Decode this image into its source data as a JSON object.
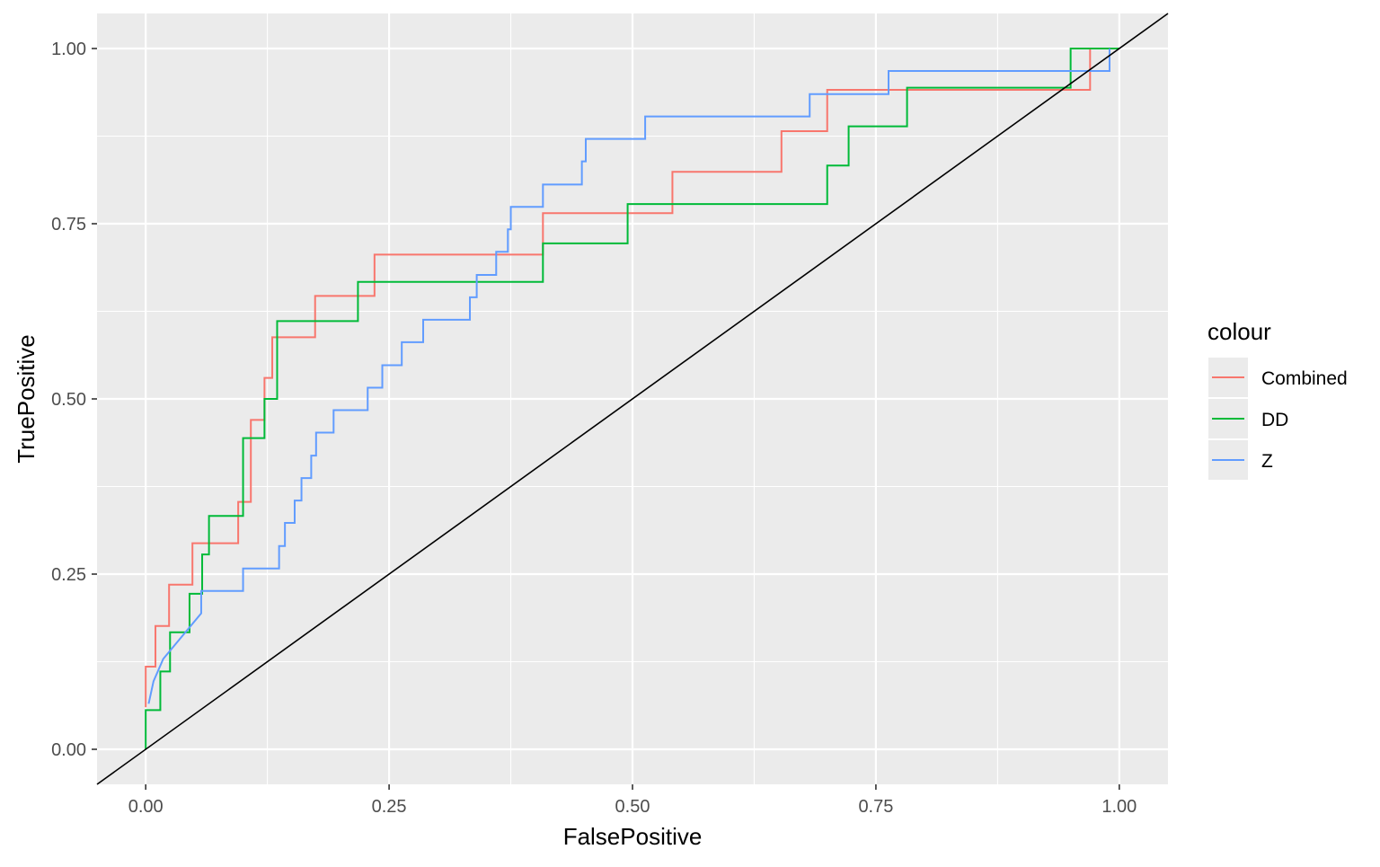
{
  "chart_data": {
    "type": "line",
    "title": "",
    "xlabel": "FalsePositive",
    "ylabel": "TruePositive",
    "xlim": [
      -0.05,
      1.05
    ],
    "ylim": [
      -0.05,
      1.05
    ],
    "x_ticks": [
      "0.00",
      "0.25",
      "0.50",
      "0.75",
      "1.00"
    ],
    "y_ticks": [
      "0.00",
      "0.25",
      "0.50",
      "0.75",
      "1.00"
    ],
    "grid": true,
    "legend": {
      "title": "colour",
      "position": "right",
      "entries": [
        "Combined",
        "DD",
        "Z"
      ]
    },
    "reference_line": {
      "x": [
        -0.05,
        1.05
      ],
      "y": [
        -0.05,
        1.05
      ],
      "color": "#000000"
    },
    "series": [
      {
        "name": "Combined",
        "color": "#F8766D",
        "x": [
          0,
          0,
          0.01,
          0.01,
          0.024,
          0.024,
          0.048,
          0.048,
          0.095,
          0.095,
          0.108,
          0.108,
          0.122,
          0.122,
          0.13,
          0.13,
          0.133,
          0.133,
          0.174,
          0.174,
          0.235,
          0.235,
          0.408,
          0.408,
          0.541,
          0.541,
          0.653,
          0.653,
          0.7,
          0.7,
          0.97,
          0.97
        ],
        "y": [
          0.06,
          0.118,
          0.118,
          0.176,
          0.176,
          0.235,
          0.235,
          0.294,
          0.294,
          0.353,
          0.353,
          0.47,
          0.47,
          0.53,
          0.53,
          0.588,
          0.588,
          0.588,
          0.588,
          0.647,
          0.647,
          0.706,
          0.706,
          0.765,
          0.765,
          0.824,
          0.824,
          0.882,
          0.882,
          0.941,
          0.941,
          1.0
        ]
      },
      {
        "name": "DD",
        "color": "#00BA38",
        "x": [
          0,
          0,
          0.015,
          0.015,
          0.02,
          0.02,
          0.025,
          0.025,
          0.045,
          0.045,
          0.058,
          0.058,
          0.065,
          0.065,
          0.1,
          0.1,
          0.122,
          0.122,
          0.135,
          0.135,
          0.218,
          0.218,
          0.408,
          0.408,
          0.495,
          0.495,
          0.7,
          0.7,
          0.722,
          0.722,
          0.782,
          0.782,
          0.95,
          0.95,
          1.0
        ],
        "y": [
          0,
          0.056,
          0.056,
          0.111,
          0.111,
          0.111,
          0.111,
          0.167,
          0.167,
          0.222,
          0.222,
          0.278,
          0.278,
          0.333,
          0.333,
          0.444,
          0.444,
          0.5,
          0.5,
          0.611,
          0.611,
          0.667,
          0.667,
          0.722,
          0.722,
          0.778,
          0.778,
          0.833,
          0.833,
          0.889,
          0.889,
          0.944,
          0.944,
          1.0,
          1.0
        ]
      },
      {
        "name": "Z",
        "color": "#619CFF",
        "x": [
          0.003,
          0.003,
          0.008,
          0.008,
          0.018,
          0.018,
          0.057,
          0.057,
          0.06,
          0.06,
          0.1,
          0.1,
          0.137,
          0.137,
          0.143,
          0.143,
          0.153,
          0.153,
          0.16,
          0.16,
          0.17,
          0.17,
          0.175,
          0.175,
          0.193,
          0.193,
          0.228,
          0.228,
          0.243,
          0.243,
          0.263,
          0.263,
          0.285,
          0.285,
          0.333,
          0.333,
          0.34,
          0.34,
          0.36,
          0.36,
          0.372,
          0.372,
          0.375,
          0.375,
          0.408,
          0.408,
          0.448,
          0.448,
          0.452,
          0.452,
          0.513,
          0.513,
          0.682,
          0.682,
          0.763,
          0.763,
          0.99,
          0.99
        ],
        "y": [
          0.065,
          0.065,
          0.097,
          0.097,
          0.129,
          0.129,
          0.194,
          0.226,
          0.226,
          0.226,
          0.226,
          0.258,
          0.258,
          0.29,
          0.29,
          0.323,
          0.323,
          0.355,
          0.355,
          0.387,
          0.387,
          0.419,
          0.419,
          0.452,
          0.452,
          0.484,
          0.484,
          0.516,
          0.516,
          0.548,
          0.548,
          0.581,
          0.581,
          0.613,
          0.613,
          0.645,
          0.645,
          0.677,
          0.677,
          0.71,
          0.71,
          0.742,
          0.742,
          0.774,
          0.774,
          0.806,
          0.806,
          0.839,
          0.839,
          0.871,
          0.871,
          0.903,
          0.903,
          0.935,
          0.935,
          0.968,
          0.968,
          1.0
        ]
      }
    ]
  }
}
